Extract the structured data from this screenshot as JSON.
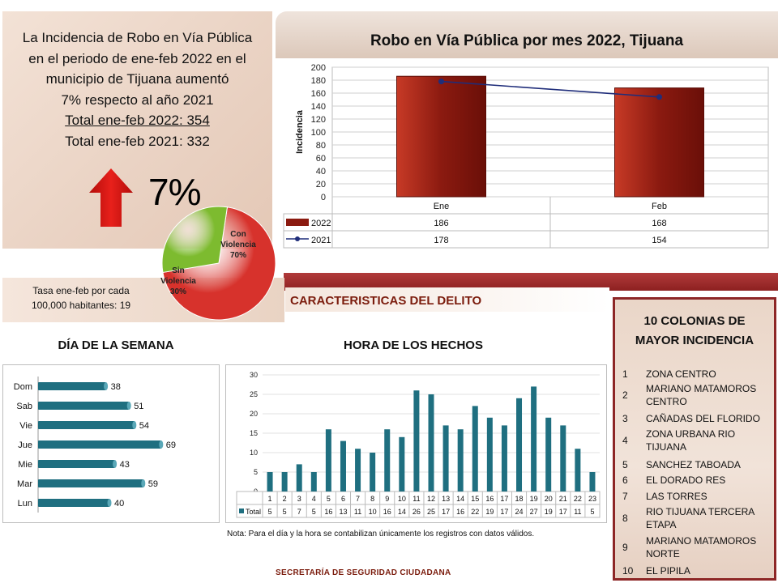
{
  "summary": {
    "line1": "La Incidencia de Robo en Vía Pública",
    "line2": "en el periodo de ene-feb  2022 en el",
    "line3": "municipio de Tijuana  aumentó",
    "line4": "7% respecto al año 2021",
    "line5": "Total ene-feb 2022:   354",
    "line6": "Total ene-feb 2021:   332",
    "change_pct": "7%",
    "arrow_color": "#e8201b"
  },
  "rate": {
    "line1": "Tasa ene-feb por cada",
    "line2": "100,000  habitantes: 19"
  },
  "characteristics_title": "CARACTERISTICAS DEL DELITO",
  "dow_title": "DÍA DE LA SEMANA",
  "hour_title": "HORA DE LOS HECHOS",
  "note": "Nota:  Para el día y la hora se contabilizan únicamente los registros con datos válidos.",
  "footer": "SECRETARÍA DE SEGURIDAD CIUDADANA",
  "top10": {
    "title_line1": "10 COLONIAS DE",
    "title_line2": "MAYOR INCIDENCIA",
    "items": [
      {
        "num": "1",
        "name": "ZONA CENTRO"
      },
      {
        "num": "2",
        "name": "MARIANO MATAMOROS CENTRO"
      },
      {
        "num": "3",
        "name": "CAÑADAS DEL FLORIDO"
      },
      {
        "num": "4",
        "name": "ZONA URBANA RIO TIJUANA"
      },
      {
        "num": "5",
        "name": "SANCHEZ TABOADA"
      },
      {
        "num": "6",
        "name": "EL DORADO RES"
      },
      {
        "num": "7",
        "name": "LAS TORRES"
      },
      {
        "num": "8",
        "name": "RIO TIJUANA TERCERA ETAPA"
      },
      {
        "num": "9",
        "name": "MARIANO MATAMOROS NORTE"
      },
      {
        "num": "10",
        "name": "EL PIPILA"
      }
    ]
  },
  "chart_data": [
    {
      "type": "bar",
      "title": "Robo en Vía Pública por mes 2022, Tijuana",
      "xlabel": "",
      "ylabel": "Incidencia",
      "categories": [
        "Ene",
        "Feb"
      ],
      "ylim": [
        0,
        200
      ],
      "yticks": [
        0,
        20,
        40,
        60,
        80,
        100,
        120,
        140,
        160,
        180,
        200
      ],
      "series": [
        {
          "name": "2022",
          "kind": "bar",
          "values": [
            186,
            168
          ],
          "color": "#8b1a10"
        },
        {
          "name": "2021",
          "kind": "line",
          "values": [
            178,
            154
          ],
          "color": "#1f2d7a"
        }
      ],
      "grid": true,
      "data_table": true
    },
    {
      "type": "pie",
      "slices": [
        {
          "label": "Con Violencia",
          "value": 70,
          "value_label": "70%",
          "color": "#d7322c"
        },
        {
          "label": "Sin Violencia",
          "value": 30,
          "value_label": "30%",
          "color": "#7dbb2f"
        }
      ]
    },
    {
      "type": "bar",
      "orientation": "horizontal",
      "title": "DÍA DE LA SEMANA",
      "categories": [
        "Dom",
        "Sab",
        "Vie",
        "Jue",
        "Mie",
        "Mar",
        "Lun"
      ],
      "values": [
        38,
        51,
        54,
        69,
        43,
        59,
        40
      ],
      "color": "#1f6f80"
    },
    {
      "type": "bar",
      "title": "HORA DE LOS HECHOS",
      "categories": [
        "1",
        "2",
        "3",
        "4",
        "5",
        "6",
        "7",
        "8",
        "9",
        "10",
        "11",
        "12",
        "13",
        "14",
        "15",
        "16",
        "17",
        "18",
        "19",
        "20",
        "21",
        "22",
        "23"
      ],
      "series": [
        {
          "name": "Total",
          "values": [
            5,
            5,
            7,
            5,
            16,
            13,
            11,
            10,
            16,
            14,
            26,
            25,
            17,
            16,
            22,
            19,
            17,
            24,
            27,
            19,
            17,
            11,
            5
          ]
        }
      ],
      "ylim": [
        0,
        30
      ],
      "yticks": [
        0,
        5,
        10,
        15,
        20,
        25,
        30
      ],
      "color": "#1f6f80",
      "data_table": true
    }
  ]
}
